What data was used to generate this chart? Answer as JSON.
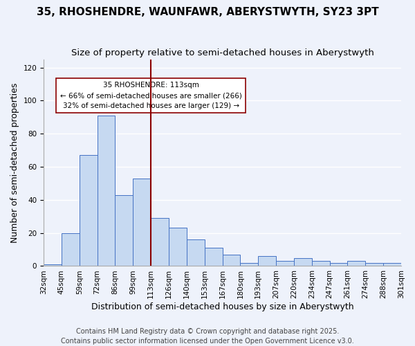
{
  "title": "35, RHOSHENDRE, WAUNFAWR, ABERYSTWYTH, SY23 3PT",
  "subtitle": "Size of property relative to semi-detached houses in Aberystwyth",
  "xlabel": "Distribution of semi-detached houses by size in Aberystwyth",
  "ylabel": "Number of semi-detached properties",
  "bin_labels": [
    "32sqm",
    "45sqm",
    "59sqm",
    "72sqm",
    "86sqm",
    "99sqm",
    "113sqm",
    "126sqm",
    "140sqm",
    "153sqm",
    "167sqm",
    "180sqm",
    "193sqm",
    "207sqm",
    "220sqm",
    "234sqm",
    "247sqm",
    "261sqm",
    "274sqm",
    "288sqm",
    "301sqm"
  ],
  "bar_values": [
    1,
    20,
    67,
    91,
    43,
    53,
    29,
    23,
    16,
    11,
    7,
    2,
    6,
    3,
    5,
    3,
    2,
    3,
    2,
    2
  ],
  "bar_color": "#c6d9f1",
  "bar_edge_color": "#4472c4",
  "highlight_index": 6,
  "highlight_line_color": "#8b0000",
  "annotation_title": "35 RHOSHENDRE: 113sqm",
  "annotation_line1": "← 66% of semi-detached houses are smaller (266)",
  "annotation_line2": "32% of semi-detached houses are larger (129) →",
  "annotation_box_edge": "#8b0000",
  "ylim": [
    0,
    125
  ],
  "yticks": [
    0,
    20,
    40,
    60,
    80,
    100,
    120
  ],
  "footer_line1": "Contains HM Land Registry data © Crown copyright and database right 2025.",
  "footer_line2": "Contains public sector information licensed under the Open Government Licence v3.0.",
  "background_color": "#eef2fb",
  "grid_color": "#ffffff",
  "title_fontsize": 11,
  "subtitle_fontsize": 9.5,
  "axis_label_fontsize": 9,
  "tick_fontsize": 7.5,
  "footer_fontsize": 7
}
